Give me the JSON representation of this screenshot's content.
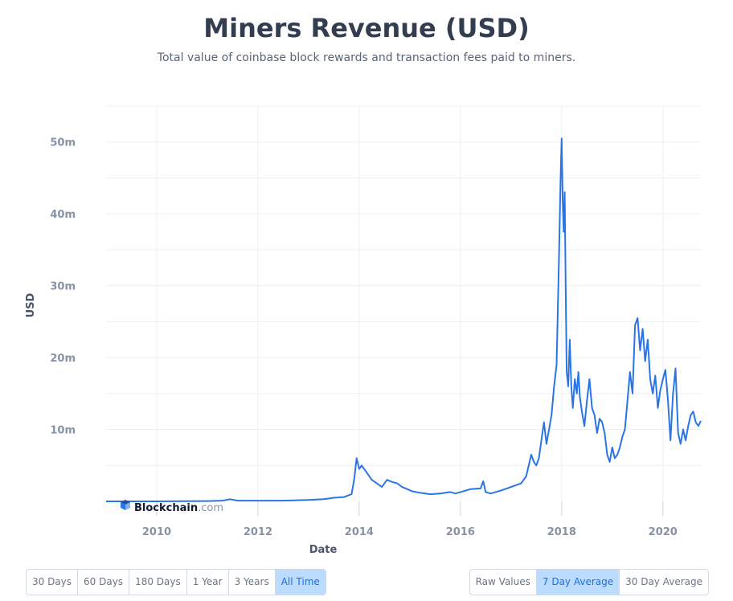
{
  "header": {
    "title": "Miners Revenue (USD)",
    "subtitle": "Total value of coinbase block rewards and transaction fees paid to miners."
  },
  "watermark": {
    "brand": "Blockchain",
    "suffix": ".com"
  },
  "colors": {
    "line": "#2a75e6",
    "accent": "#bcdcff",
    "grid": "#edf0f4",
    "axis_text": "#8792a5"
  },
  "chart_data": {
    "type": "line",
    "title": "Miners Revenue (USD)",
    "xlabel": "Date",
    "ylabel": "USD",
    "xlim": [
      2009.0,
      2020.75
    ],
    "ylim": [
      0,
      55
    ],
    "y_unit": "million USD",
    "grid": true,
    "x_ticks": [
      {
        "value": 2010,
        "label": "2010"
      },
      {
        "value": 2012,
        "label": "2012"
      },
      {
        "value": 2014,
        "label": "2014"
      },
      {
        "value": 2016,
        "label": "2016"
      },
      {
        "value": 2018,
        "label": "2018"
      },
      {
        "value": 2020,
        "label": "2020"
      }
    ],
    "y_ticks": [
      {
        "value": 10,
        "label": "10m"
      },
      {
        "value": 20,
        "label": "20m"
      },
      {
        "value": 30,
        "label": "30m"
      },
      {
        "value": 40,
        "label": "40m"
      },
      {
        "value": 50,
        "label": "50m"
      }
    ],
    "series": [
      {
        "name": "Miners Revenue (7 Day Average)",
        "x": [
          2009.0,
          2010.0,
          2011.0,
          2011.3,
          2011.45,
          2011.6,
          2012.0,
          2012.5,
          2013.0,
          2013.3,
          2013.5,
          2013.7,
          2013.85,
          2013.9,
          2013.95,
          2014.0,
          2014.05,
          2014.15,
          2014.25,
          2014.35,
          2014.45,
          2014.55,
          2014.65,
          2014.75,
          2014.85,
          2014.95,
          2015.05,
          2015.2,
          2015.4,
          2015.6,
          2015.8,
          2015.9,
          2016.0,
          2016.2,
          2016.4,
          2016.45,
          2016.5,
          2016.6,
          2016.8,
          2017.0,
          2017.2,
          2017.3,
          2017.4,
          2017.45,
          2017.5,
          2017.55,
          2017.6,
          2017.65,
          2017.7,
          2017.75,
          2017.8,
          2017.85,
          2017.9,
          2017.95,
          2017.98,
          2018.0,
          2018.02,
          2018.04,
          2018.06,
          2018.08,
          2018.1,
          2018.13,
          2018.16,
          2018.19,
          2018.22,
          2018.26,
          2018.3,
          2018.33,
          2018.36,
          2018.4,
          2018.45,
          2018.5,
          2018.55,
          2018.6,
          2018.65,
          2018.7,
          2018.75,
          2018.8,
          2018.85,
          2018.9,
          2018.95,
          2019.0,
          2019.05,
          2019.1,
          2019.15,
          2019.2,
          2019.25,
          2019.3,
          2019.35,
          2019.4,
          2019.45,
          2019.5,
          2019.55,
          2019.6,
          2019.65,
          2019.7,
          2019.75,
          2019.8,
          2019.85,
          2019.9,
          2019.95,
          2020.0,
          2020.05,
          2020.1,
          2020.15,
          2020.2,
          2020.25,
          2020.3,
          2020.35,
          2020.4,
          2020.45,
          2020.5,
          2020.55,
          2020.6,
          2020.65,
          2020.7,
          2020.75
        ],
        "values": [
          0.0,
          0.0,
          0.05,
          0.1,
          0.3,
          0.1,
          0.1,
          0.1,
          0.2,
          0.3,
          0.5,
          0.6,
          1.0,
          3.0,
          6.0,
          4.5,
          5.0,
          4.0,
          3.0,
          2.5,
          2.0,
          3.0,
          2.7,
          2.5,
          2.0,
          1.7,
          1.4,
          1.2,
          1.0,
          1.1,
          1.3,
          1.1,
          1.3,
          1.7,
          1.8,
          2.8,
          1.3,
          1.1,
          1.5,
          2.0,
          2.5,
          3.5,
          6.5,
          5.5,
          5.0,
          6.0,
          8.5,
          11.0,
          8.0,
          10.0,
          12.0,
          16.0,
          19.0,
          35.0,
          45.0,
          50.5,
          42.0,
          37.5,
          43.0,
          30.0,
          18.0,
          16.0,
          22.5,
          16.0,
          13.0,
          17.0,
          15.0,
          18.0,
          14.5,
          12.5,
          10.5,
          14.0,
          17.0,
          13.0,
          12.0,
          9.5,
          11.5,
          11.0,
          9.5,
          6.5,
          5.5,
          7.5,
          6.0,
          6.5,
          7.5,
          9.0,
          10.0,
          14.0,
          18.0,
          15.0,
          24.5,
          25.5,
          21.0,
          24.0,
          19.5,
          22.5,
          17.0,
          15.0,
          17.5,
          13.0,
          15.5,
          17.0,
          18.3,
          14.0,
          8.5,
          15.0,
          18.5,
          9.5,
          8.0,
          10.0,
          8.5,
          10.5,
          12.0,
          12.5,
          11.0,
          10.5,
          11.2
        ]
      }
    ]
  },
  "controls": {
    "range_buttons": [
      {
        "label": "30 Days",
        "active": false
      },
      {
        "label": "60 Days",
        "active": false
      },
      {
        "label": "180 Days",
        "active": false
      },
      {
        "label": "1 Year",
        "active": false
      },
      {
        "label": "3 Years",
        "active": false
      },
      {
        "label": "All Time",
        "active": true
      }
    ],
    "mode_buttons": [
      {
        "label": "Raw Values",
        "active": false
      },
      {
        "label": "7 Day Average",
        "active": true
      },
      {
        "label": "30 Day Average",
        "active": false
      }
    ]
  }
}
